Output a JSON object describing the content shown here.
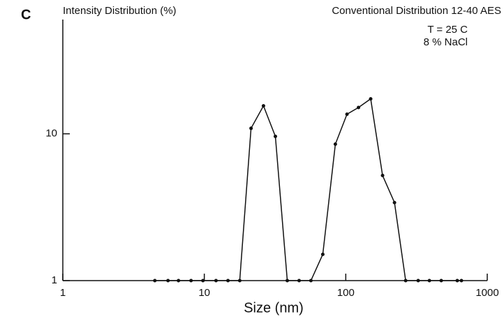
{
  "chart_data": {
    "type": "line",
    "panel_label": "C",
    "title_left": "Intensity Distribution (%)",
    "title_right": "Conventional Distribution 12-40 AES",
    "annotations": [
      "T = 25 C",
      "8 % NaCl"
    ],
    "xlabel": "Size (nm)",
    "log_x": true,
    "log_y": true,
    "xlim": [
      1,
      1000
    ],
    "ylim": [
      1,
      60
    ],
    "xticks": [
      1,
      10,
      100,
      1000
    ],
    "yticks": [
      1,
      10
    ],
    "x": [
      4.47,
      5.54,
      6.57,
      8.06,
      9.78,
      12.1,
      14.7,
      17.8,
      21.4,
      26.2,
      31.8,
      38.6,
      46.8,
      56.7,
      68.8,
      84.4,
      102,
      123,
      150,
      182,
      221,
      265,
      325,
      390,
      473,
      614,
      657
    ],
    "series": [
      {
        "color": "#111111",
        "values": [
          1,
          1,
          1,
          1,
          1,
          1,
          1,
          1,
          10.9,
          15.5,
          9.6,
          1,
          1,
          1,
          1.51,
          8.5,
          13.6,
          15.1,
          17.3,
          5.2,
          3.4,
          1,
          1,
          1,
          1,
          1,
          1
        ]
      }
    ]
  }
}
